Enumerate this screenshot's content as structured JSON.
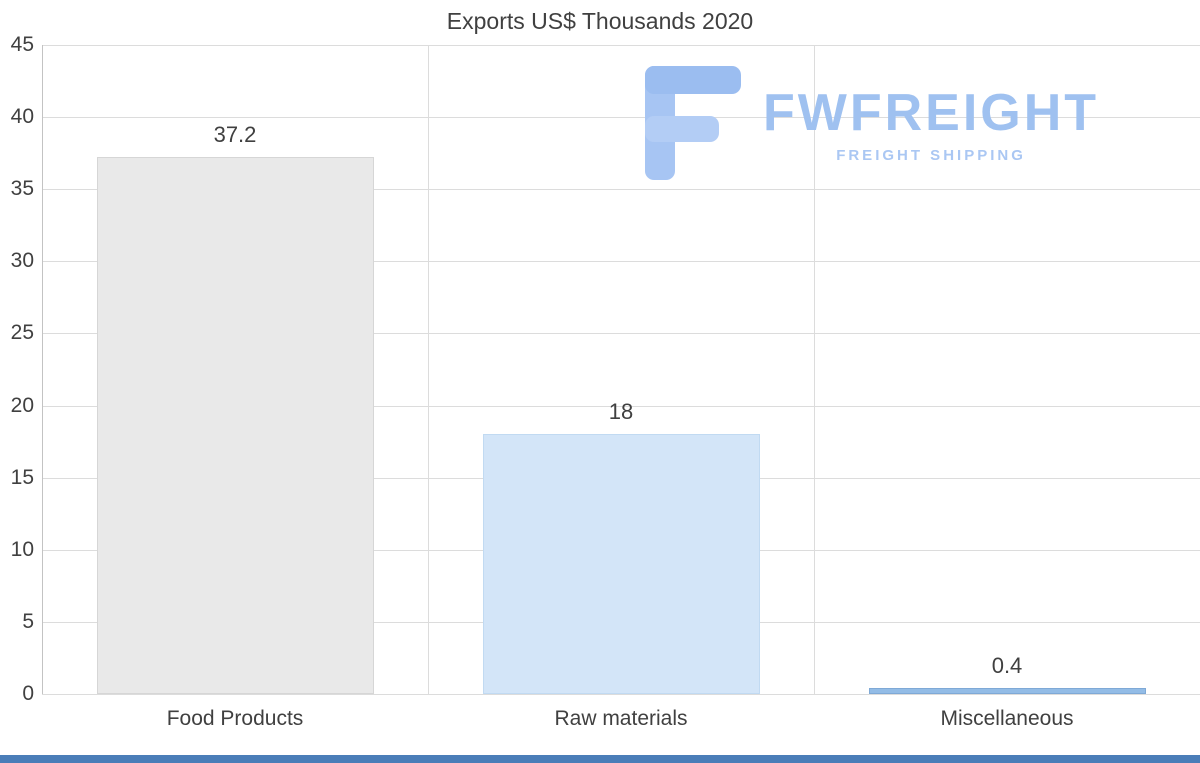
{
  "title": "Exports US$ Thousands 2020",
  "logo": {
    "name": "FWFREIGHT",
    "tagline": "FREIGHT SHIPPING"
  },
  "chart_data": {
    "type": "bar",
    "title": "Exports US$ Thousands 2020",
    "categories": [
      "Food Products",
      "Raw materials",
      "Miscellaneous"
    ],
    "values": [
      37.2,
      18,
      0.4
    ],
    "value_labels": [
      "37.2",
      "18",
      "0.4"
    ],
    "xlabel": "",
    "ylabel": "",
    "ylim": [
      0,
      45
    ],
    "yticks": [
      0,
      5,
      10,
      15,
      20,
      25,
      30,
      35,
      40,
      45
    ],
    "grid": true,
    "legend": "none",
    "bar_colors": [
      "#e9e9e9",
      "#d3e5f8",
      "#93bce6"
    ],
    "bar_border_colors": [
      "#d6d6d6",
      "#c1daf2",
      "#7fa9d6"
    ]
  },
  "colors": {
    "text": "#404040",
    "grid": "#dcdcdc",
    "axis": "#c3c3c3",
    "accent_strip": "#4a7db8",
    "logo_primary": "#9fc1f0",
    "logo_secondary": "#aac7f3"
  }
}
